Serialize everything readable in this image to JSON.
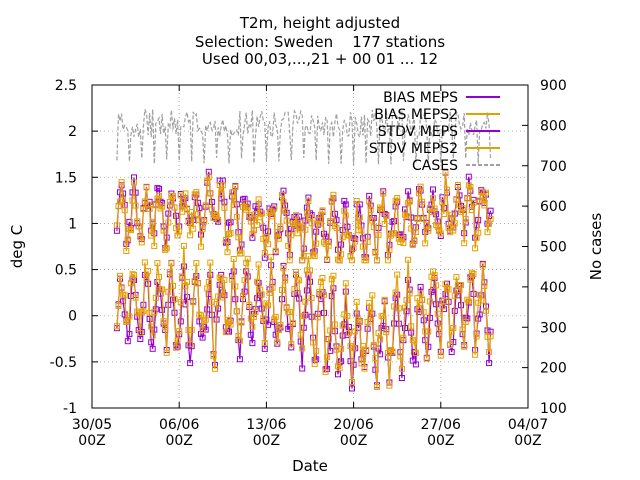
{
  "chart_data": {
    "type": "line",
    "title": "T2m, height adjusted",
    "subtitle_lines": [
      "Selection: Sweden    177 stations",
      "Used 00,03,...,21 + 00 01 ... 12"
    ],
    "xlabel": "Date",
    "ylabel": "deg C",
    "y2label": "No cases",
    "x_ticks": [
      "30/05\n00Z",
      "06/06\n00Z",
      "13/06\n00Z",
      "20/06\n00Z",
      "27/06\n00Z",
      "04/07\n00Z"
    ],
    "x_range": [
      "2017-05-30",
      "2017-07-04"
    ],
    "ylim": [
      -1,
      2.5
    ],
    "y_ticks": [
      -1,
      -0.5,
      0,
      0.5,
      1,
      1.5,
      2,
      2.5
    ],
    "y2lim": [
      100,
      900
    ],
    "y2_ticks": [
      100,
      200,
      300,
      400,
      500,
      600,
      700,
      800,
      900
    ],
    "grid": true,
    "legend_placement": "top-right",
    "data_start": "2017-06-01",
    "data_end": "2017-07-01",
    "step_hours": 3,
    "series": [
      {
        "name": "BIAS MEPS",
        "color": "#9400d3",
        "role": "bias-a"
      },
      {
        "name": "BIAS MEPS2",
        "color": "#e69f00",
        "role": "bias-b"
      },
      {
        "name": "STDV MEPS",
        "color": "#9400d3",
        "role": "stdv-a"
      },
      {
        "name": "STDV MEPS2",
        "color": "#e69f00",
        "role": "stdv-b"
      },
      {
        "name": "CASES",
        "color": "#a0a0a0",
        "role": "cases"
      }
    ],
    "legend_labels": [
      "BIAS MEPS",
      "BIAS MEPS2",
      "STDV MEPS",
      "STDV MEPS2",
      "CASES"
    ]
  }
}
